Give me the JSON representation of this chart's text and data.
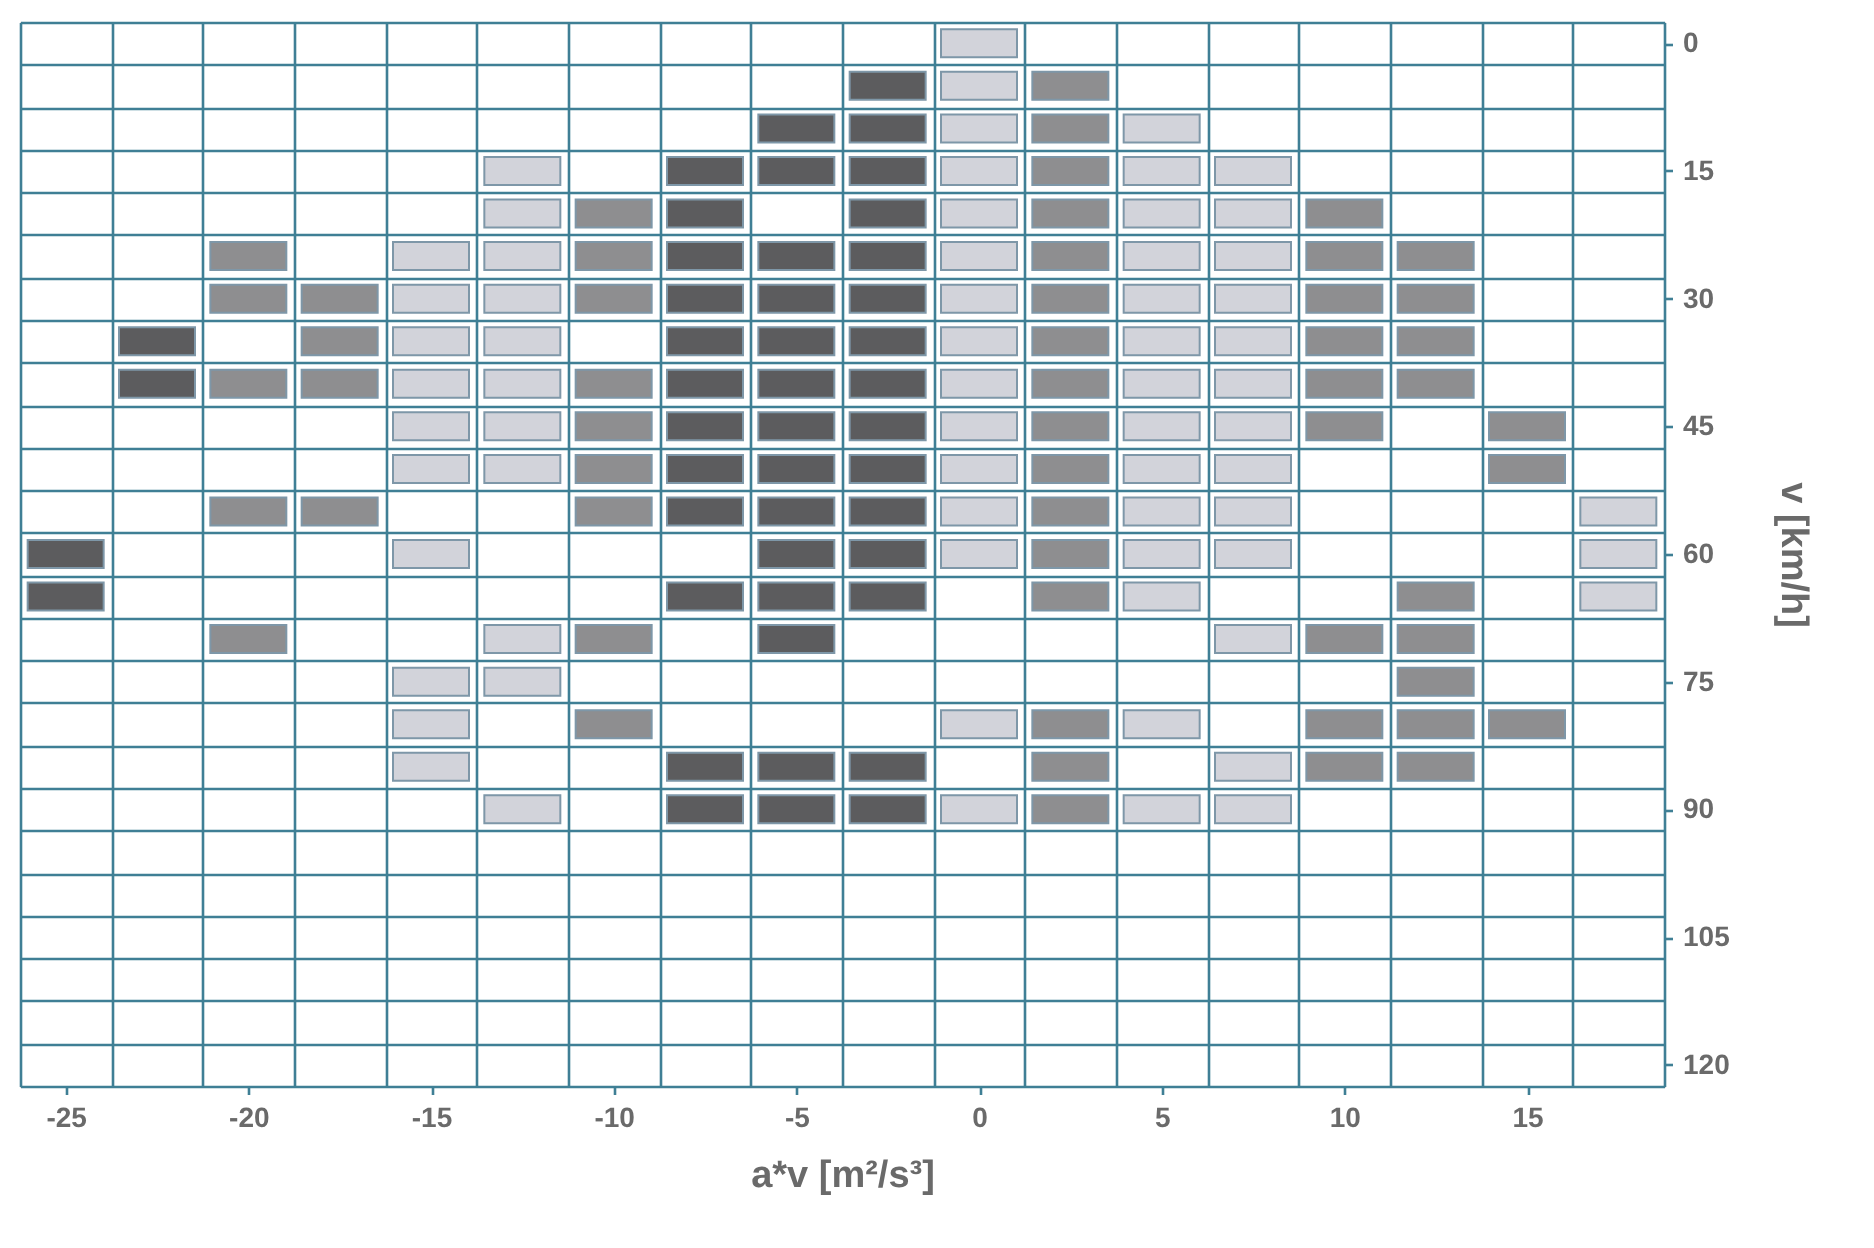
{
  "chart_data": {
    "type": "scatter",
    "xlabel": "a*v [m²/s³]",
    "ylabel": "v [km/h]",
    "grid": true,
    "legend": false,
    "xlim": [
      -26.25,
      18.75
    ],
    "ylim": [
      122.5,
      -2.5
    ],
    "xticks": [
      {
        "value": -26.25,
        "label": null
      },
      -25,
      {
        "value": -23.75,
        "label": null
      },
      {
        "value": -21.25,
        "label": null
      },
      -20,
      {
        "value": -18.75,
        "label": null
      },
      {
        "value": -16.25,
        "label": null
      },
      -15,
      {
        "value": -13.75,
        "label": null
      },
      {
        "value": -11.25,
        "label": null
      },
      -10,
      {
        "value": -8.75,
        "label": null
      },
      {
        "value": -6.25,
        "label": null
      },
      -5,
      {
        "value": -3.75,
        "label": null
      },
      {
        "value": -1.25,
        "label": null
      },
      0,
      {
        "value": 1.25,
        "label": null
      },
      {
        "value": 3.75,
        "label": null
      },
      5,
      {
        "value": 6.25,
        "label": null
      },
      {
        "value": 8.75,
        "label": null
      },
      10,
      {
        "value": 11.25,
        "label": null
      },
      {
        "value": 13.75,
        "label": null
      },
      15,
      {
        "value": 16.25,
        "label": null
      },
      {
        "value": 18.75,
        "label": null
      }
    ],
    "yticks": [
      {
        "value": -2.5,
        "label": null
      },
      0,
      {
        "value": 2.5,
        "label": null
      },
      {
        "value": 7.5,
        "label": null
      },
      {
        "value": 12.5,
        "label": null
      },
      15,
      {
        "value": 17.5,
        "label": null
      },
      {
        "value": 22.5,
        "label": null
      },
      {
        "value": 27.5,
        "label": null
      },
      30,
      {
        "value": 32.5,
        "label": null
      },
      {
        "value": 37.5,
        "label": null
      },
      {
        "value": 42.5,
        "label": null
      },
      45,
      {
        "value": 47.5,
        "label": null
      },
      {
        "value": 52.5,
        "label": null
      },
      {
        "value": 57.5,
        "label": null
      },
      60,
      {
        "value": 62.5,
        "label": null
      },
      {
        "value": 67.5,
        "label": null
      },
      {
        "value": 72.5,
        "label": null
      },
      75,
      {
        "value": 77.5,
        "label": null
      },
      {
        "value": 82.5,
        "label": null
      },
      {
        "value": 87.5,
        "label": null
      },
      90,
      {
        "value": 92.5,
        "label": null
      },
      {
        "value": 97.5,
        "label": null
      },
      {
        "value": 102.5,
        "label": null
      },
      105,
      {
        "value": 107.5,
        "label": null
      },
      {
        "value": 112.5,
        "label": null
      },
      {
        "value": 117.5,
        "label": null
      },
      120,
      {
        "value": 122.5,
        "label": null
      }
    ],
    "series": [
      {
        "color": "#5c5c5e",
        "x": [
          -2.5,
          -5,
          -2.5,
          -7.5,
          -5,
          -2.5,
          -7.5,
          -2.5,
          -7.5,
          -5,
          -2.5,
          -7.5,
          -5,
          -2.5,
          -22.5,
          -7.5,
          -5,
          -2.5,
          -22.5,
          -7.5,
          -5,
          -2.5,
          -7.5,
          -5,
          -2.5,
          -7.5,
          -5,
          -2.5,
          -7.5,
          -5,
          -2.5,
          -25,
          -5,
          -2.5,
          -25,
          -7.5,
          -5,
          -2.5,
          -5,
          -7.5,
          -5,
          -2.5,
          -7.5,
          -5,
          -2.5
        ],
        "values": [
          5,
          10,
          10,
          15,
          15,
          15,
          20,
          20,
          25,
          25,
          25,
          30,
          30,
          30,
          35,
          35,
          35,
          35,
          40,
          40,
          40,
          40,
          45,
          45,
          45,
          50,
          50,
          50,
          55,
          55,
          55,
          60,
          60,
          60,
          65,
          65,
          65,
          65,
          70,
          85,
          85,
          85,
          90,
          90,
          90
        ]
      },
      {
        "color": "#8e8e90",
        "x": [
          2.5,
          2.5,
          2.5,
          -10,
          2.5,
          10,
          -20,
          -10,
          2.5,
          10,
          12.5,
          -20,
          -17.5,
          -10,
          2.5,
          10,
          12.5,
          -17.5,
          2.5,
          10,
          12.5,
          -20,
          -17.5,
          -10,
          2.5,
          10,
          12.5,
          -10,
          2.5,
          10,
          15,
          -10,
          2.5,
          15,
          -20,
          -17.5,
          -10,
          2.5,
          2.5,
          2.5,
          12.5,
          -20,
          -10,
          10,
          12.5,
          12.5,
          -10,
          2.5,
          10,
          12.5,
          15,
          2.5,
          10,
          12.5,
          2.5
        ],
        "values": [
          5,
          10,
          15,
          20,
          20,
          20,
          25,
          25,
          25,
          25,
          25,
          30,
          30,
          30,
          30,
          30,
          30,
          35,
          35,
          35,
          35,
          40,
          40,
          40,
          40,
          40,
          40,
          45,
          45,
          45,
          45,
          50,
          50,
          50,
          55,
          55,
          55,
          55,
          60,
          65,
          65,
          70,
          70,
          70,
          70,
          75,
          80,
          80,
          80,
          80,
          80,
          85,
          85,
          85,
          90
        ]
      },
      {
        "color": "#d2d3da",
        "x": [
          0,
          0,
          0,
          5,
          -12.5,
          0,
          5,
          7.5,
          -12.5,
          0,
          5,
          7.5,
          -15,
          -12.5,
          0,
          5,
          7.5,
          -15,
          -12.5,
          0,
          5,
          7.5,
          -15,
          -12.5,
          0,
          5,
          7.5,
          -15,
          -12.5,
          0,
          5,
          7.5,
          -15,
          -12.5,
          0,
          5,
          7.5,
          -15,
          -12.5,
          0,
          5,
          7.5,
          0,
          5,
          7.5,
          17.5,
          -15,
          0,
          5,
          7.5,
          17.5,
          5,
          17.5,
          -12.5,
          7.5,
          -15,
          -12.5,
          -15,
          0,
          5,
          -15,
          7.5,
          -12.5,
          0,
          5,
          7.5
        ],
        "values": [
          0,
          5,
          10,
          10,
          15,
          15,
          15,
          15,
          20,
          20,
          20,
          20,
          25,
          25,
          25,
          25,
          25,
          30,
          30,
          30,
          30,
          30,
          35,
          35,
          35,
          35,
          35,
          40,
          40,
          40,
          40,
          40,
          45,
          45,
          45,
          45,
          45,
          50,
          50,
          50,
          50,
          50,
          55,
          55,
          55,
          55,
          60,
          60,
          60,
          60,
          60,
          65,
          65,
          70,
          70,
          75,
          75,
          80,
          80,
          80,
          85,
          85,
          90,
          90,
          90,
          90
        ]
      }
    ]
  }
}
